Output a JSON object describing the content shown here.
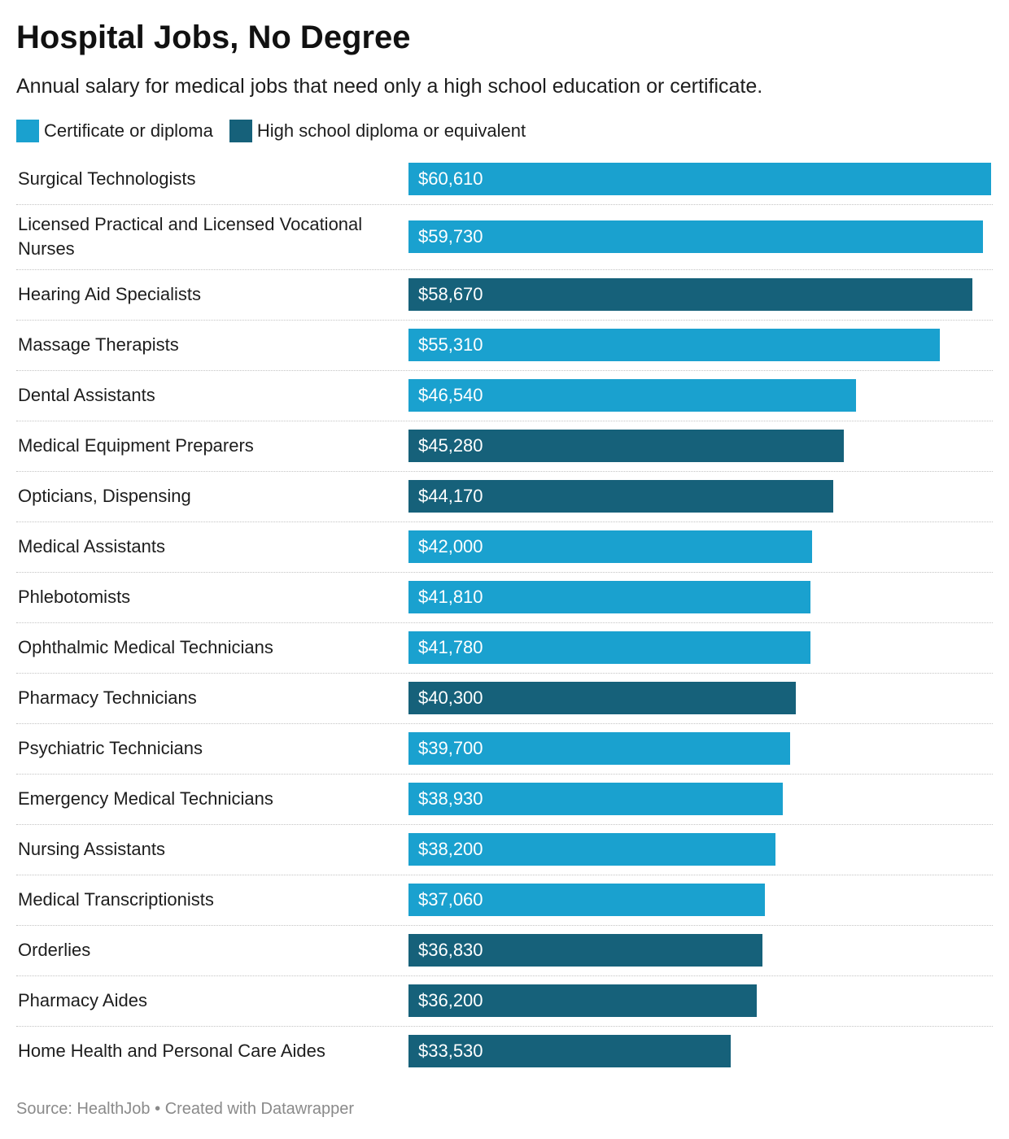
{
  "title": "Hospital Jobs, No Degree",
  "subtitle": "Annual salary for medical jobs that need only a high school education or certificate.",
  "colors": {
    "certificate": "#1aa1cf",
    "high_school": "#16617a"
  },
  "legend": [
    {
      "label": "Certificate or diploma",
      "color": "#1aa1cf"
    },
    {
      "label": "High school diploma or equivalent",
      "color": "#16617a"
    }
  ],
  "footer": {
    "source": "Source: HealthJob",
    "separator": "•",
    "credit": "Created with Datawrapper"
  },
  "chart_data": {
    "type": "bar",
    "orientation": "horizontal",
    "xlim": [
      0,
      60610
    ],
    "grid": false,
    "legend_position": "top-left",
    "bars": [
      {
        "category": "Surgical Technologists",
        "value": 60610,
        "label": "$60,610",
        "group": "certificate"
      },
      {
        "category": "Licensed Practical and Licensed Vocational Nurses",
        "value": 59730,
        "label": "$59,730",
        "group": "certificate"
      },
      {
        "category": "Hearing Aid Specialists",
        "value": 58670,
        "label": "$58,670",
        "group": "high_school"
      },
      {
        "category": "Massage Therapists",
        "value": 55310,
        "label": "$55,310",
        "group": "certificate"
      },
      {
        "category": "Dental Assistants",
        "value": 46540,
        "label": "$46,540",
        "group": "certificate"
      },
      {
        "category": "Medical Equipment Preparers",
        "value": 45280,
        "label": "$45,280",
        "group": "high_school"
      },
      {
        "category": "Opticians, Dispensing",
        "value": 44170,
        "label": "$44,170",
        "group": "high_school"
      },
      {
        "category": "Medical Assistants",
        "value": 42000,
        "label": "$42,000",
        "group": "certificate"
      },
      {
        "category": "Phlebotomists",
        "value": 41810,
        "label": "$41,810",
        "group": "certificate"
      },
      {
        "category": "Ophthalmic Medical Technicians",
        "value": 41780,
        "label": "$41,780",
        "group": "certificate"
      },
      {
        "category": "Pharmacy Technicians",
        "value": 40300,
        "label": "$40,300",
        "group": "high_school"
      },
      {
        "category": "Psychiatric Technicians",
        "value": 39700,
        "label": "$39,700",
        "group": "certificate"
      },
      {
        "category": "Emergency Medical Technicians",
        "value": 38930,
        "label": "$38,930",
        "group": "certificate"
      },
      {
        "category": "Nursing Assistants",
        "value": 38200,
        "label": "$38,200",
        "group": "certificate"
      },
      {
        "category": "Medical Transcriptionists",
        "value": 37060,
        "label": "$37,060",
        "group": "certificate"
      },
      {
        "category": "Orderlies",
        "value": 36830,
        "label": "$36,830",
        "group": "high_school"
      },
      {
        "category": "Pharmacy Aides",
        "value": 36200,
        "label": "$36,200",
        "group": "high_school"
      },
      {
        "category": "Home Health and Personal Care Aides",
        "value": 33530,
        "label": "$33,530",
        "group": "high_school"
      }
    ]
  }
}
